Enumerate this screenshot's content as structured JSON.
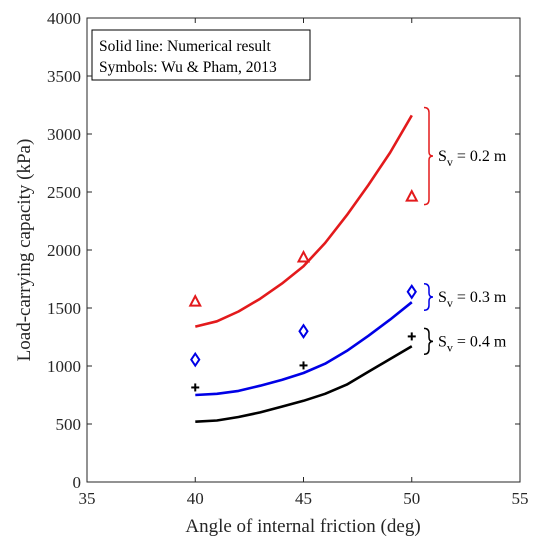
{
  "legend": {
    "line1": "Solid line: Numerical result",
    "line2": "Symbols: Wu & Pham, 2013"
  },
  "chart_data": {
    "type": "line",
    "xlabel": "Angle of internal friction (deg)",
    "ylabel": "Load-carrying capacity (kPa)",
    "xlim": [
      35,
      55
    ],
    "ylim": [
      0,
      4000
    ],
    "xticks": [
      35,
      40,
      45,
      50,
      55
    ],
    "yticks": [
      0,
      500,
      1000,
      1500,
      2000,
      2500,
      3000,
      3500,
      4000
    ],
    "grid": false,
    "legend_position": "top-left",
    "series": [
      {
        "color": "#e31a1c",
        "marker": "triangle",
        "annotation": {
          "main": "S",
          "sub": "v",
          "rest": " = 0.2 m"
        },
        "line": {
          "x": [
            40,
            41,
            42,
            43,
            44,
            45,
            46,
            47,
            48,
            49,
            50
          ],
          "y": [
            1340,
            1385,
            1470,
            1580,
            1710,
            1860,
            2060,
            2300,
            2560,
            2840,
            3160
          ]
        },
        "symbols": {
          "x": [
            40,
            45,
            50
          ],
          "y": [
            1555,
            1935,
            2460
          ]
        }
      },
      {
        "color": "#0000e6",
        "marker": "diamond",
        "annotation": {
          "main": "S",
          "sub": "v",
          "rest": " = 0.3 m"
        },
        "line": {
          "x": [
            40,
            41,
            42,
            43,
            44,
            45,
            46,
            47,
            48,
            49,
            50
          ],
          "y": [
            750,
            760,
            785,
            830,
            880,
            940,
            1020,
            1130,
            1260,
            1400,
            1550
          ]
        },
        "symbols": {
          "x": [
            40,
            45,
            50
          ],
          "y": [
            1055,
            1300,
            1640
          ]
        }
      },
      {
        "color": "#000000",
        "marker": "plus",
        "annotation": {
          "main": "S",
          "sub": "v",
          "rest": " = 0.4 m"
        },
        "line": {
          "x": [
            40,
            41,
            42,
            43,
            44,
            45,
            46,
            47,
            48,
            49,
            50
          ],
          "y": [
            520,
            530,
            560,
            600,
            650,
            700,
            760,
            840,
            950,
            1060,
            1170
          ]
        },
        "symbols": {
          "x": [
            40,
            45,
            50
          ],
          "y": [
            815,
            1005,
            1255
          ]
        }
      }
    ]
  }
}
